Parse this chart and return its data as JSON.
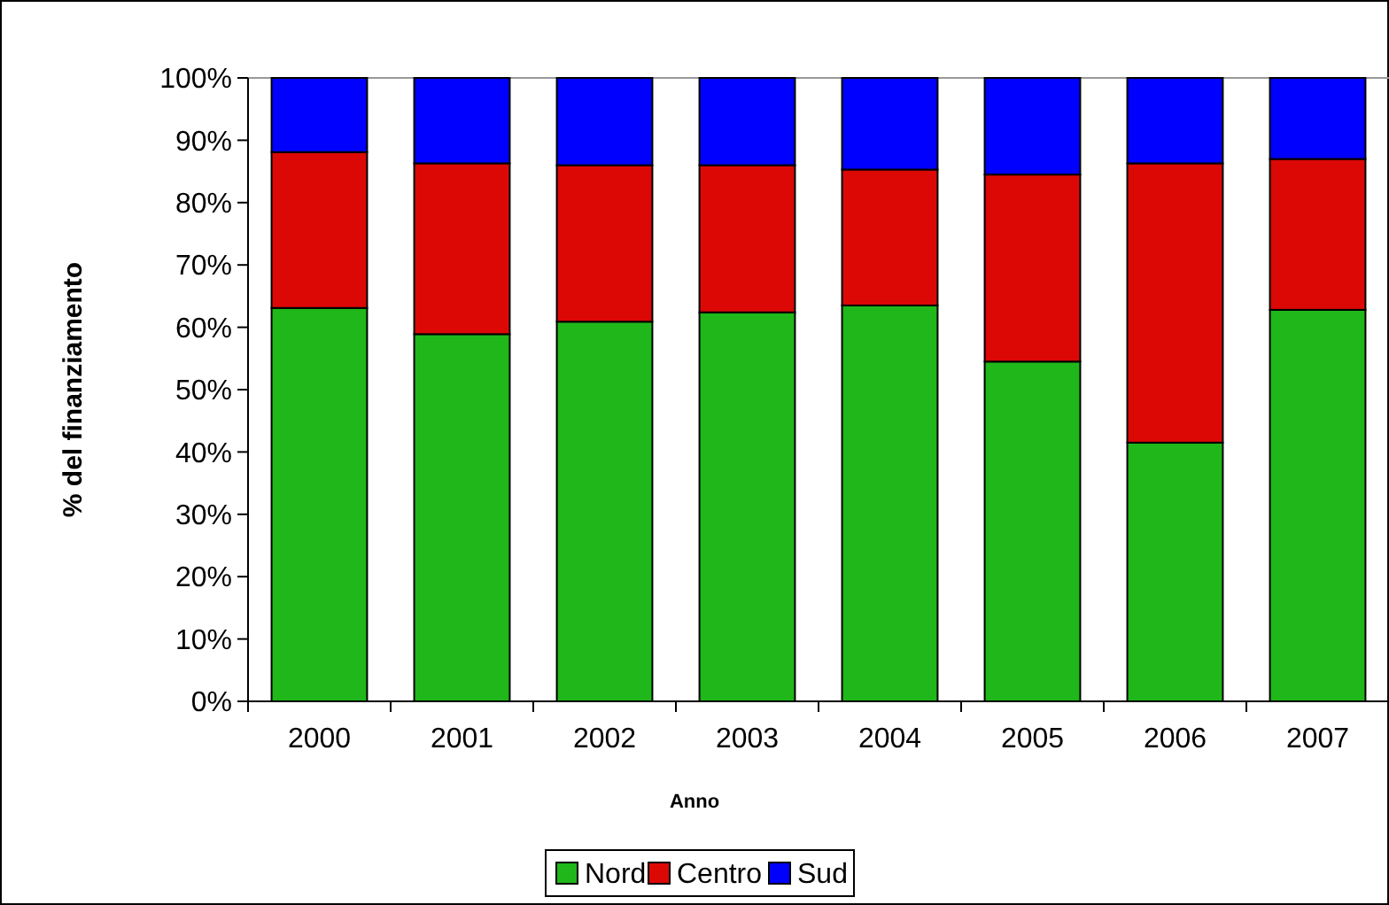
{
  "chart_data": {
    "type": "bar",
    "stacked": true,
    "xlabel": "Anno",
    "ylabel": "% del finanziamento",
    "categories": [
      "2000",
      "2001",
      "2002",
      "2003",
      "2004",
      "2005",
      "2006",
      "2007"
    ],
    "series": [
      {
        "name": "Nord",
        "color": "#1fb719",
        "values": [
          63.1,
          58.9,
          60.9,
          62.4,
          63.5,
          54.5,
          41.5,
          62.8
        ]
      },
      {
        "name": "Centro",
        "color": "#dc0806",
        "values": [
          25,
          27.4,
          25.1,
          23.6,
          21.8,
          30,
          44.8,
          24.2
        ]
      },
      {
        "name": "Sud",
        "color": "#0000ff",
        "values": [
          11.9,
          13.7,
          14,
          14,
          14.7,
          15.5,
          13.7,
          13
        ]
      }
    ],
    "ylim": [
      0,
      100
    ],
    "yticks": [
      {
        "value": 0,
        "label": "0%"
      },
      {
        "value": 10,
        "label": "10%"
      },
      {
        "value": 20,
        "label": "20%"
      },
      {
        "value": 30,
        "label": "30%"
      },
      {
        "value": 40,
        "label": "40%"
      },
      {
        "value": 50,
        "label": "50%"
      },
      {
        "value": 60,
        "label": "60%"
      },
      {
        "value": 70,
        "label": "70%"
      },
      {
        "value": 80,
        "label": "80%"
      },
      {
        "value": 90,
        "label": "90%"
      },
      {
        "value": 100,
        "label": "100%"
      }
    ],
    "grid": false,
    "legend": "bottom"
  }
}
